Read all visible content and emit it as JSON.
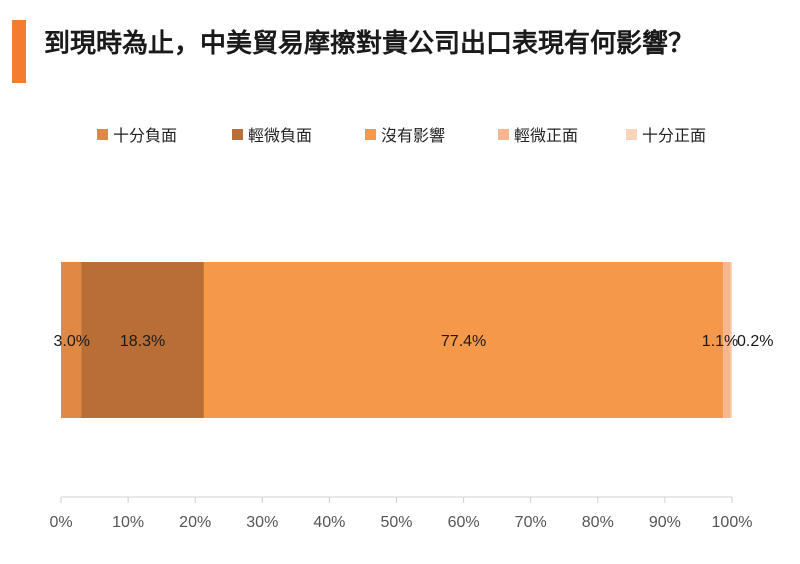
{
  "title": "到現時為止，中美貿易摩擦對貴公司出口表現有何影響？",
  "colors": {
    "accent": "#f47c30",
    "series": [
      "#e08844",
      "#b96e35",
      "#f59849",
      "#f8b68f",
      "#fad3bb"
    ]
  },
  "chart_data": {
    "type": "bar",
    "orientation": "horizontal",
    "stacked": true,
    "xlim": [
      0,
      100
    ],
    "x_ticks": [
      "0%",
      "10%",
      "20%",
      "30%",
      "40%",
      "50%",
      "60%",
      "70%",
      "80%",
      "90%",
      "100%"
    ],
    "series": [
      {
        "name": "十分負面",
        "value": 3.0,
        "label": "3.0%"
      },
      {
        "name": "輕微負面",
        "value": 18.3,
        "label": "18.3%"
      },
      {
        "name": "沒有影響",
        "value": 77.4,
        "label": "77.4%"
      },
      {
        "name": "輕微正面",
        "value": 1.1,
        "label": "1.1%"
      },
      {
        "name": "十分正面",
        "value": 0.2,
        "label": "0.2%"
      }
    ],
    "legend_position": "top",
    "grid": false
  }
}
